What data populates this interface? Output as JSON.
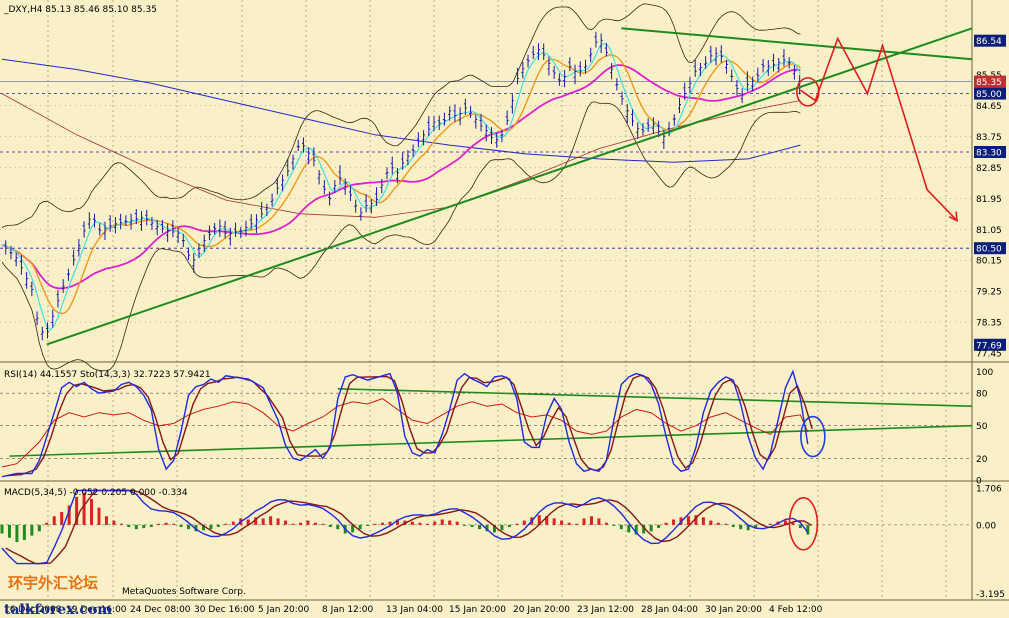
{
  "colors": {
    "background": "#F9F0C8",
    "grid": "#8C7F55",
    "candle": "#1818A8",
    "bollinger": "#3A2410",
    "ma_fast": "#40E0E0",
    "ma_medium": "#F09A1A",
    "ma_slow": "#E020D0",
    "ma_200": "#2828C8",
    "ma_long": "#A83232",
    "trend_green": "#1E8A1E",
    "projection_red": "#E01E1E",
    "rsi": "#D01A10",
    "stoch_main": "#2028E0",
    "stoch_signal": "#8A1515",
    "macd_pos": "#E02020",
    "macd_neg": "#1E8C1E",
    "macd_main": "#2028E0",
    "macd_signal": "#8A1515",
    "tag_bg": "#0A1E7A",
    "tag_text": "#FFFFFF",
    "current_tag_bg": "#C03030"
  },
  "header": {
    "main": "_DXY,H4  85.13 85.46 85.10 85.35",
    "rsi": "RSI(14) 44.1557",
    "stoch": "Sto(14,3,3) 32.7223 57.9421",
    "macd": "MACD(5,34,5) -0.052 0.205 0.000 -0.334"
  },
  "watermark": {
    "chinese": "环宇外汇论坛",
    "site": "talkforex.com",
    "copyright": "MetaQuotes Software Corp."
  },
  "chart_data": [
    {
      "type": "candlestick",
      "title": "_DXY,H4",
      "ohlc_last": {
        "open": 85.13,
        "high": 85.46,
        "low": 85.1,
        "close": 85.35
      },
      "price_axis_ticks": [
        86.54,
        85.55,
        85.35,
        85.0,
        84.65,
        83.75,
        83.3,
        82.85,
        81.95,
        81.05,
        80.5,
        80.15,
        79.25,
        78.35,
        77.69,
        77.45
      ],
      "highlighted_levels": [
        86.54,
        85.35,
        85.0,
        83.3,
        80.5,
        77.69
      ],
      "horizontal_lines": [
        85.35,
        85.0,
        83.3,
        80.5
      ],
      "time_labels": [
        "16 Dec 2008",
        "19 Dec 16:00",
        "24 Dec 08:00",
        "30 Dec 16:00",
        "5 Jan 20:00",
        "8 Jan 12:00",
        "13 Jan 04:00",
        "15 Jan 20:00",
        "20 Jan 20:00",
        "23 Jan 12:00",
        "28 Jan 04:00",
        "30 Jan 20:00",
        "4 Feb 12:00"
      ],
      "close_path": [
        [
          0,
          80.6
        ],
        [
          2,
          80.2
        ],
        [
          4,
          79.3
        ],
        [
          5,
          78.1
        ],
        [
          6,
          78.0
        ],
        [
          8,
          79.3
        ],
        [
          9,
          79.8
        ],
        [
          11,
          81.0
        ],
        [
          12,
          81.5
        ],
        [
          13,
          81.0
        ],
        [
          15,
          81.2
        ],
        [
          17,
          81.3
        ],
        [
          19,
          81.4
        ],
        [
          21,
          81.1
        ],
        [
          24,
          80.9
        ],
        [
          25,
          80.3
        ],
        [
          26,
          80.1
        ],
        [
          27,
          80.7
        ],
        [
          29,
          81.2
        ],
        [
          30,
          80.9
        ],
        [
          32,
          81.0
        ],
        [
          34,
          81.3
        ],
        [
          36,
          81.8
        ],
        [
          37,
          82.3
        ],
        [
          38,
          82.6
        ],
        [
          39,
          83.1
        ],
        [
          40,
          83.6
        ],
        [
          41,
          83.3
        ],
        [
          42,
          83.0
        ],
        [
          43,
          82.3
        ],
        [
          44,
          81.9
        ],
        [
          45,
          82.6
        ],
        [
          46,
          82.4
        ],
        [
          47,
          81.9
        ],
        [
          48,
          81.5
        ],
        [
          49,
          81.8
        ],
        [
          50,
          81.8
        ],
        [
          51,
          82.4
        ],
        [
          52,
          82.9
        ],
        [
          53,
          82.7
        ],
        [
          54,
          83.1
        ],
        [
          55,
          83.3
        ],
        [
          56,
          83.7
        ],
        [
          57,
          83.9
        ],
        [
          58,
          84.2
        ],
        [
          59,
          84.1
        ],
        [
          60,
          84.5
        ],
        [
          61,
          84.3
        ],
        [
          62,
          84.6
        ],
        [
          63,
          84.4
        ],
        [
          64,
          84.1
        ],
        [
          65,
          83.9
        ],
        [
          66,
          83.6
        ],
        [
          67,
          83.8
        ],
        [
          68,
          84.4
        ],
        [
          69,
          85.4
        ],
        [
          70,
          85.8
        ],
        [
          71,
          86.1
        ],
        [
          72,
          86.3
        ],
        [
          73,
          86.0
        ],
        [
          74,
          85.6
        ],
        [
          75,
          85.3
        ],
        [
          76,
          85.8
        ],
        [
          77,
          85.6
        ],
        [
          78,
          85.7
        ],
        [
          79,
          86.2
        ],
        [
          80,
          86.7
        ],
        [
          81,
          86.2
        ],
        [
          82,
          85.5
        ],
        [
          83,
          84.9
        ],
        [
          84,
          84.4
        ],
        [
          85,
          84.0
        ],
        [
          86,
          83.9
        ],
        [
          87,
          84.2
        ],
        [
          88,
          83.9
        ],
        [
          89,
          83.7
        ],
        [
          90,
          84.2
        ],
        [
          91,
          84.8
        ],
        [
          92,
          85.2
        ],
        [
          93,
          85.7
        ],
        [
          94,
          85.8
        ],
        [
          95,
          86.1
        ],
        [
          96,
          86.2
        ],
        [
          97,
          85.9
        ],
        [
          98,
          85.4
        ],
        [
          99,
          84.9
        ],
        [
          100,
          85.3
        ],
        [
          101,
          85.4
        ],
        [
          102,
          85.8
        ],
        [
          103,
          85.8
        ],
        [
          104,
          85.9
        ],
        [
          105,
          86.0
        ],
        [
          106,
          85.8
        ],
        [
          107,
          85.1
        ]
      ],
      "projection_path": [
        [
          107,
          85.1
        ],
        [
          109,
          84.8
        ],
        [
          112,
          86.6
        ],
        [
          116,
          85.0
        ],
        [
          118,
          86.4
        ],
        [
          124,
          82.2
        ],
        [
          128,
          81.3
        ]
      ],
      "trendlines": [
        {
          "from": [
            6,
            77.7
          ],
          "to": [
            130,
            86.9
          ]
        },
        {
          "from": [
            83,
            86.9
          ],
          "to": [
            130,
            86.0
          ]
        }
      ],
      "circles": [
        {
          "at": [
            108,
            85.05
          ]
        }
      ],
      "y_range": [
        77.45,
        87.2
      ]
    },
    {
      "type": "line",
      "title": "RSI(14) / Sto(14,3,3)",
      "rsi_last": 44.1557,
      "stoch_last": [
        32.7223,
        57.9421
      ],
      "levels": [
        100,
        80,
        50,
        20,
        0
      ],
      "stoch_path": [
        [
          0,
          3
        ],
        [
          2,
          6
        ],
        [
          4,
          6
        ],
        [
          5,
          18
        ],
        [
          6,
          40
        ],
        [
          7,
          62
        ],
        [
          8,
          85
        ],
        [
          9,
          90
        ],
        [
          10,
          86
        ],
        [
          11,
          90
        ],
        [
          12,
          84
        ],
        [
          13,
          80
        ],
        [
          15,
          82
        ],
        [
          16,
          88
        ],
        [
          17,
          90
        ],
        [
          18,
          86
        ],
        [
          19,
          78
        ],
        [
          20,
          65
        ],
        [
          21,
          28
        ],
        [
          22,
          10
        ],
        [
          23,
          18
        ],
        [
          24,
          45
        ],
        [
          25,
          78
        ],
        [
          26,
          86
        ],
        [
          27,
          88
        ],
        [
          28,
          93
        ],
        [
          29,
          90
        ],
        [
          30,
          96
        ],
        [
          31,
          95
        ],
        [
          33,
          93
        ],
        [
          35,
          85
        ],
        [
          37,
          55
        ],
        [
          38,
          32
        ],
        [
          39,
          20
        ],
        [
          40,
          18
        ],
        [
          42,
          28
        ],
        [
          43,
          20
        ],
        [
          44,
          30
        ],
        [
          45,
          75
        ],
        [
          46,
          95
        ],
        [
          47,
          97
        ],
        [
          49,
          92
        ],
        [
          51,
          96
        ],
        [
          52,
          98
        ],
        [
          53,
          80
        ],
        [
          54,
          40
        ],
        [
          55,
          25
        ],
        [
          56,
          22
        ],
        [
          57,
          28
        ],
        [
          58,
          25
        ],
        [
          59,
          42
        ],
        [
          60,
          65
        ],
        [
          61,
          92
        ],
        [
          62,
          98
        ],
        [
          63,
          93
        ],
        [
          64,
          90
        ],
        [
          65,
          86
        ],
        [
          66,
          95
        ],
        [
          67,
          96
        ],
        [
          68,
          93
        ],
        [
          69,
          75
        ],
        [
          70,
          35
        ],
        [
          71,
          30
        ],
        [
          72,
          30
        ],
        [
          73,
          60
        ],
        [
          74,
          75
        ],
        [
          75,
          65
        ],
        [
          76,
          35
        ],
        [
          77,
          15
        ],
        [
          78,
          8
        ],
        [
          79,
          10
        ],
        [
          80,
          8
        ],
        [
          81,
          18
        ],
        [
          82,
          55
        ],
        [
          83,
          88
        ],
        [
          84,
          95
        ],
        [
          85,
          98
        ],
        [
          86,
          96
        ],
        [
          87,
          88
        ],
        [
          88,
          70
        ],
        [
          89,
          40
        ],
        [
          90,
          15
        ],
        [
          91,
          8
        ],
        [
          92,
          10
        ],
        [
          93,
          30
        ],
        [
          94,
          62
        ],
        [
          95,
          82
        ],
        [
          96,
          90
        ],
        [
          97,
          95
        ],
        [
          98,
          92
        ],
        [
          99,
          70
        ],
        [
          100,
          40
        ],
        [
          101,
          20
        ],
        [
          102,
          10
        ],
        [
          103,
          25
        ],
        [
          104,
          55
        ],
        [
          105,
          85
        ],
        [
          106,
          100
        ],
        [
          107,
          75
        ],
        [
          108,
          33
        ]
      ],
      "rsi_path": [
        [
          0,
          12
        ],
        [
          2,
          15
        ],
        [
          5,
          35
        ],
        [
          7,
          55
        ],
        [
          9,
          62
        ],
        [
          11,
          58
        ],
        [
          13,
          62
        ],
        [
          15,
          60
        ],
        [
          17,
          62
        ],
        [
          19,
          55
        ],
        [
          21,
          50
        ],
        [
          23,
          52
        ],
        [
          25,
          60
        ],
        [
          27,
          65
        ],
        [
          29,
          68
        ],
        [
          31,
          72
        ],
        [
          33,
          70
        ],
        [
          35,
          62
        ],
        [
          37,
          50
        ],
        [
          39,
          45
        ],
        [
          41,
          52
        ],
        [
          43,
          58
        ],
        [
          45,
          68
        ],
        [
          47,
          72
        ],
        [
          49,
          70
        ],
        [
          51,
          75
        ],
        [
          53,
          65
        ],
        [
          55,
          55
        ],
        [
          57,
          52
        ],
        [
          59,
          60
        ],
        [
          61,
          68
        ],
        [
          63,
          72
        ],
        [
          65,
          68
        ],
        [
          67,
          70
        ],
        [
          69,
          62
        ],
        [
          71,
          58
        ],
        [
          73,
          60
        ],
        [
          75,
          55
        ],
        [
          77,
          45
        ],
        [
          79,
          42
        ],
        [
          81,
          45
        ],
        [
          83,
          58
        ],
        [
          85,
          65
        ],
        [
          87,
          62
        ],
        [
          89,
          52
        ],
        [
          91,
          45
        ],
        [
          93,
          50
        ],
        [
          95,
          58
        ],
        [
          97,
          62
        ],
        [
          99,
          55
        ],
        [
          101,
          48
        ],
        [
          103,
          42
        ],
        [
          105,
          58
        ],
        [
          107,
          60
        ],
        [
          108,
          44
        ]
      ],
      "trendlines": [
        {
          "from": [
            1,
            22
          ],
          "to": [
            130,
            50
          ]
        },
        {
          "from": [
            45,
            84
          ],
          "to": [
            130,
            68
          ]
        }
      ],
      "circles": [
        {
          "at": [
            108,
            40
          ]
        }
      ],
      "y_range": [
        0,
        105
      ]
    },
    {
      "type": "bar",
      "title": "MACD(5,34,5)",
      "values_last": [
        -0.052,
        0.205,
        0.0,
        -0.334
      ],
      "axis_ticks": [
        1.706,
        0.0,
        -3.195
      ],
      "histogram": [
        -0.4,
        -0.6,
        -0.8,
        -0.7,
        -0.5,
        -0.3,
        0.1,
        0.4,
        0.6,
        0.9,
        1.3,
        1.5,
        1.2,
        0.8,
        0.4,
        0.2,
        0.05,
        -0.1,
        -0.2,
        -0.15,
        -0.1,
        0.05,
        0.1,
        0.05,
        -0.1,
        -0.2,
        -0.3,
        -0.25,
        -0.2,
        -0.1,
        0.05,
        0.15,
        0.3,
        0.25,
        0.35,
        0.3,
        0.4,
        0.3,
        0.2,
        0.05,
        0.1,
        0.2,
        0.1,
        0.05,
        -0.1,
        -0.2,
        -0.4,
        -0.35,
        -0.2,
        -0.05,
        0.05,
        0.1,
        0.15,
        0.25,
        0.2,
        0.15,
        0.1,
        0.05,
        0.15,
        0.25,
        0.2,
        0.15,
        -0.05,
        -0.1,
        -0.2,
        -0.3,
        -0.35,
        -0.25,
        -0.1,
        0.05,
        0.2,
        0.35,
        0.45,
        0.4,
        0.3,
        0.2,
        0.1,
        0.05,
        0.3,
        0.4,
        0.3,
        0.1,
        -0.05,
        -0.2,
        -0.35,
        -0.45,
        -0.4,
        -0.3,
        -0.15,
        0.1,
        0.25,
        0.35,
        0.4,
        0.45,
        0.35,
        0.2,
        0.1,
        0.05,
        -0.1,
        -0.2,
        -0.25,
        -0.15,
        -0.05,
        0.05,
        0.15,
        0.2,
        0.1,
        -0.15,
        -0.45
      ],
      "y_range": [
        -3.4,
        1.9
      ]
    }
  ]
}
